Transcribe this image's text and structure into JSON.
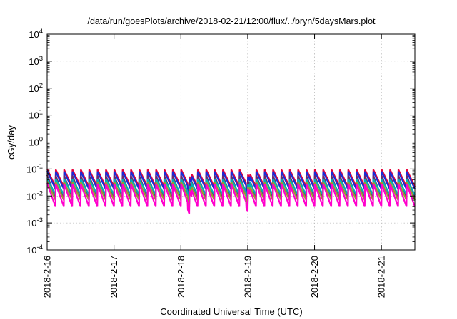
{
  "chart_data": {
    "type": "line",
    "title": "/data/run/goesPlots/archive/2018-02-21/12:00/flux/../bryn/5daysMars.plot",
    "xlabel": "Coordinated Universal Time (UTC)",
    "ylabel": "cGy/day",
    "yscale": "log",
    "ylim": [
      0.0001,
      10000
    ],
    "xlim": [
      "2018-2-16",
      "2018-2-21 12:00"
    ],
    "x_tick_labels": [
      "2018-2-16",
      "2018-2-17",
      "2018-2-18",
      "2018-2-19",
      "2018-2-20",
      "2018-2-21"
    ],
    "y_ticks": [
      {
        "base": "10",
        "exp": "-4"
      },
      {
        "base": "10",
        "exp": "-3"
      },
      {
        "base": "10",
        "exp": "-2"
      },
      {
        "base": "10",
        "exp": "-1"
      },
      {
        "base": "10",
        "exp": "0"
      },
      {
        "base": "10",
        "exp": "1"
      },
      {
        "base": "10",
        "exp": "2"
      },
      {
        "base": "10",
        "exp": "3"
      },
      {
        "base": "10",
        "exp": "4"
      }
    ],
    "grid": true,
    "cycle_period_hours": 3,
    "dips": [
      {
        "time": "2018-2-18 03:00",
        "factor": 0.55
      },
      {
        "time": "2018-2-19 00:00",
        "factor": 0.65
      }
    ],
    "series": [
      {
        "color": "#e8003a",
        "peak": 0.1,
        "trough": 0.022
      },
      {
        "color": "#1a2cd6",
        "peak": 0.085,
        "trough": 0.018
      },
      {
        "color": "#6a2a6a",
        "peak": 0.06,
        "trough": 0.009
      },
      {
        "color": "#00b3b3",
        "peak": 0.045,
        "trough": 0.011
      },
      {
        "color": "#9a9a30",
        "peak": 0.035,
        "trough": 0.007
      },
      {
        "color": "#ff00cc",
        "peak": 0.03,
        "trough": 0.004
      }
    ]
  }
}
